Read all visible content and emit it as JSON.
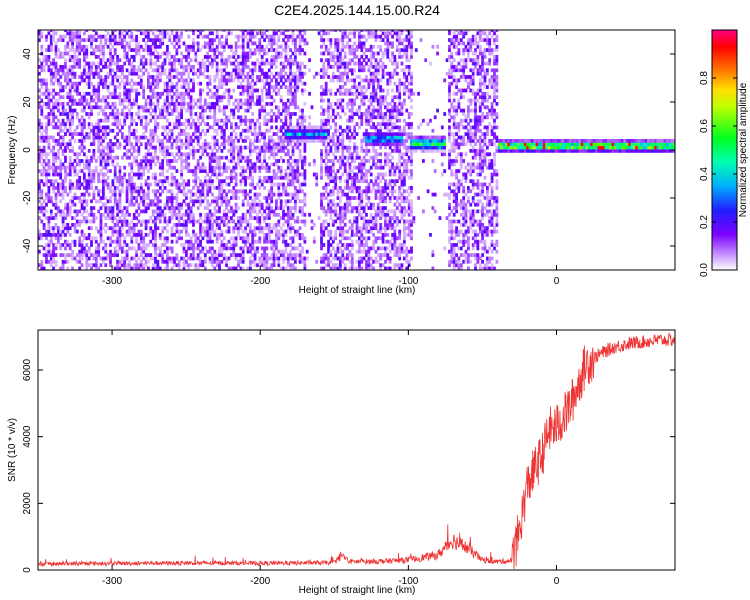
{
  "figure": {
    "title": "C2E4.2025.144.15.00.R24"
  },
  "chart_data": [
    {
      "type": "heatmap",
      "title": "C2E4.2025.144.15.00.R24",
      "xlabel": "Height of straight line (km)",
      "ylabel": "Frequency (Hz)",
      "xlim": [
        -350,
        80
      ],
      "ylim": [
        -50,
        50
      ],
      "xticks": [
        -300,
        -200,
        -100,
        0
      ],
      "yticks": [
        -40,
        -20,
        0,
        20,
        40
      ],
      "colorbar": {
        "label": "Normalized spectral amplitude",
        "range": [
          0,
          1
        ],
        "ticks": [
          0.0,
          0.2,
          0.4,
          0.6,
          0.8
        ],
        "colormap": [
          "#ffffff",
          "#7a00ff",
          "#3030ff",
          "#00c0ff",
          "#00ff40",
          "#ffff00",
          "#ff8000",
          "#ff0000",
          "#ff0080"
        ]
      },
      "noise_band_x": [
        -350,
        -40
      ],
      "gaps_x": [
        [
          -170,
          -160
        ],
        [
          -98,
          -74
        ]
      ],
      "signal_segments": [
        {
          "x": [
            -185,
            -155
          ],
          "freq": 6,
          "amplitude": 0.35
        },
        {
          "x": [
            -130,
            -105
          ],
          "freq": 4,
          "amplitude": 0.4
        },
        {
          "x": [
            -100,
            -75
          ],
          "freq": 2,
          "amplitude": 0.55
        },
        {
          "x": [
            -40,
            80
          ],
          "freq": 1,
          "amplitude": 0.7
        }
      ]
    },
    {
      "type": "line",
      "xlabel": "Height of straight line (km)",
      "ylabel": "SNR (10 * v/v)",
      "xlim": [
        -350,
        80
      ],
      "ylim": [
        0,
        7200
      ],
      "xticks": [
        -300,
        -200,
        -100,
        0
      ],
      "yticks": [
        0,
        2000,
        4000,
        6000
      ],
      "color": "#ee3333",
      "series": [
        {
          "x": [
            -350,
            -300,
            -250,
            -200,
            -150,
            -145,
            -140,
            -120,
            -100,
            -80,
            -70,
            -60,
            -50,
            -40,
            -30,
            -25,
            -20,
            -15,
            -10,
            -5,
            0,
            5,
            10,
            15,
            20,
            30,
            40,
            50,
            60,
            70,
            80
          ],
          "values": [
            180,
            200,
            210,
            200,
            220,
            450,
            250,
            260,
            300,
            450,
            900,
            650,
            300,
            250,
            280,
            1200,
            2500,
            3000,
            3400,
            4200,
            4300,
            4600,
            5000,
            5600,
            6200,
            6500,
            6700,
            6800,
            6850,
            6900,
            6900
          ]
        }
      ]
    }
  ]
}
